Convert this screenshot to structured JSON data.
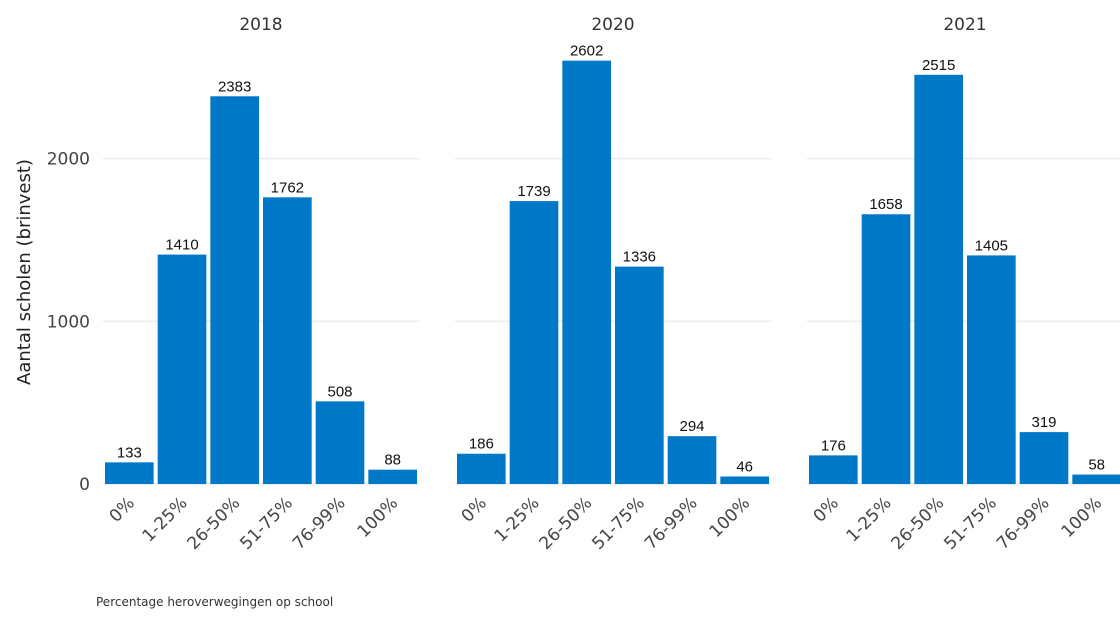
{
  "chart_data": {
    "type": "bar",
    "ylabel": "Aantal scholen (brinvest)",
    "xlabel": "Percentage heroverwegingen op school",
    "categories": [
      "0%",
      "1-25%",
      "26-50%",
      "51-75%",
      "76-99%",
      "100%"
    ],
    "yticks": [
      0,
      1000,
      2000
    ],
    "ylim": [
      0,
      2750
    ],
    "grid": true,
    "bar_color": "#0078c8",
    "panels": [
      {
        "title": "2018",
        "values": [
          133,
          1410,
          2383,
          1762,
          508,
          88
        ]
      },
      {
        "title": "2020",
        "values": [
          186,
          1739,
          2602,
          1336,
          294,
          46
        ]
      },
      {
        "title": "2021",
        "values": [
          176,
          1658,
          2515,
          1405,
          319,
          58
        ]
      }
    ]
  }
}
